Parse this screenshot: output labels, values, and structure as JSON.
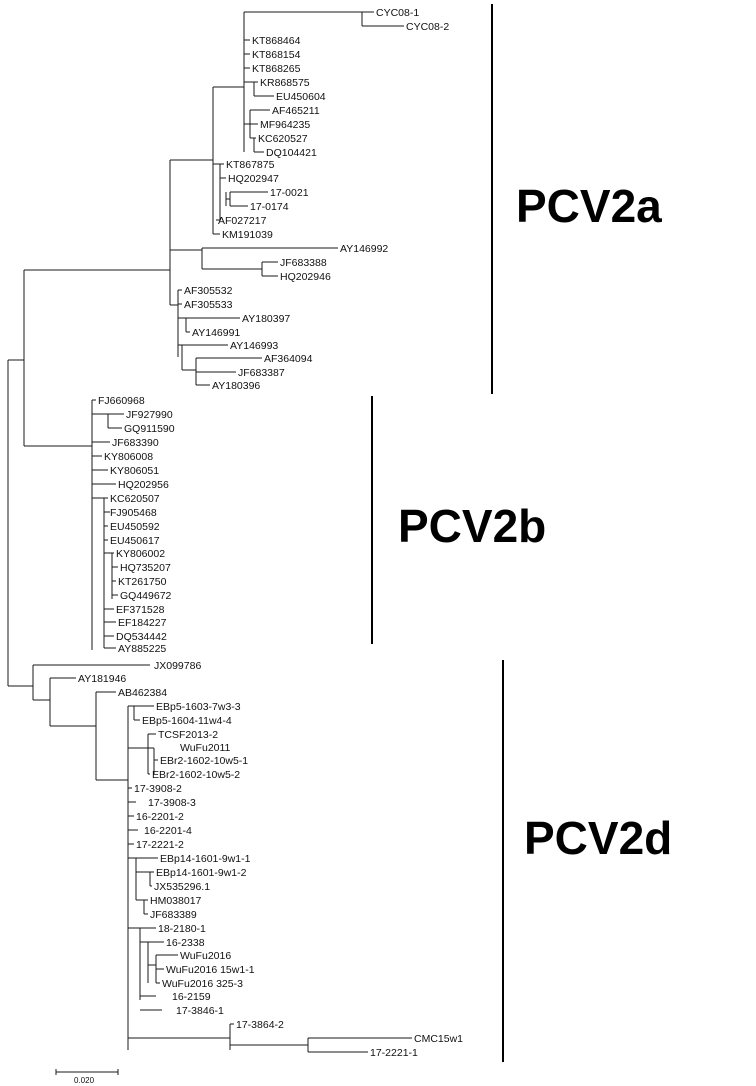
{
  "clades": {
    "a": {
      "label": "PCV2a"
    },
    "b": {
      "label": "PCV2b"
    },
    "d": {
      "label": "PCV2d"
    }
  },
  "scale": {
    "label": "0.020"
  },
  "leaves": {
    "cyc08_1": "CYC08-1",
    "cyc08_2": "CYC08-2",
    "kt868464": "KT868464",
    "kt868154": "KT868154",
    "kt868265": "KT868265",
    "kr868575": "KR868575",
    "eu450604": "EU450604",
    "af465211": "AF465211",
    "mf964235": "MF964235",
    "kc620527": "KC620527",
    "dq104421": "DQ104421",
    "kt867875": "KT867875",
    "hq202947": "HQ202947",
    "s17_0021": "17-0021",
    "s17_0174": "17-0174",
    "af027217": "AF027217",
    "km191039": "KM191039",
    "ay146992": "AY146992",
    "jf683388": "JF683388",
    "hq202946": "HQ202946",
    "af305532": "AF305532",
    "af305533": "AF305533",
    "ay180397": "AY180397",
    "ay146991": "AY146991",
    "ay146993": "AY146993",
    "af364094": "AF364094",
    "jf683387": "JF683387",
    "ay180396": "AY180396",
    "fj660968": "FJ660968",
    "jf927990": "JF927990",
    "gq911590": "GQ911590",
    "jf683390": "JF683390",
    "ky806008": "KY806008",
    "ky806051": "KY806051",
    "hq202956": "HQ202956",
    "kc620507": "KC620507",
    "fj905468": "FJ905468",
    "eu450592": "EU450592",
    "eu450617": "EU450617",
    "ky806002": "KY806002",
    "hq735207": "HQ735207",
    "kt261750": "KT261750",
    "gq449672": "GQ449672",
    "ef371528": "EF371528",
    "ef184227": "EF184227",
    "dq534442": "DQ534442",
    "ay885225": "AY885225",
    "jx099786": "JX099786",
    "ay181946": "AY181946",
    "ab462384": "AB462384",
    "ebp5_1603": "EBp5-1603-7w3-3",
    "ebp5_1604": "EBp5-1604-11w4-4",
    "tcsf2013": "TCSF2013-2",
    "wufu2011": "WuFu2011",
    "ebr2_1": "EBr2-1602-10w5-1",
    "ebr2_2": "EBr2-1602-10w5-2",
    "s17_3908_2": "17-3908-2",
    "s17_3908_3": "17-3908-3",
    "s16_2201_2": "16-2201-2",
    "s16_2201_4": "16-2201-4",
    "s17_2221_2": "17-2221-2",
    "ebp14_1": "EBp14-1601-9w1-1",
    "ebp14_2": "EBp14-1601-9w1-2",
    "jx535296": "JX535296.1",
    "hm038017": "HM038017",
    "jf683389": "JF683389",
    "s18_2180": "18-2180-1",
    "s16_2338": "16-2338",
    "wufu2016": "WuFu2016",
    "wufu2016_15": "WuFu2016 15w1-1",
    "wufu2016_325": "WuFu2016 325-3",
    "s16_2159": "16-2159",
    "s17_3846": "17-3846-1",
    "s17_3864": "17-3864-2",
    "cmc15w1": "CMC15w1",
    "s17_2221_1": "17-2221-1"
  }
}
